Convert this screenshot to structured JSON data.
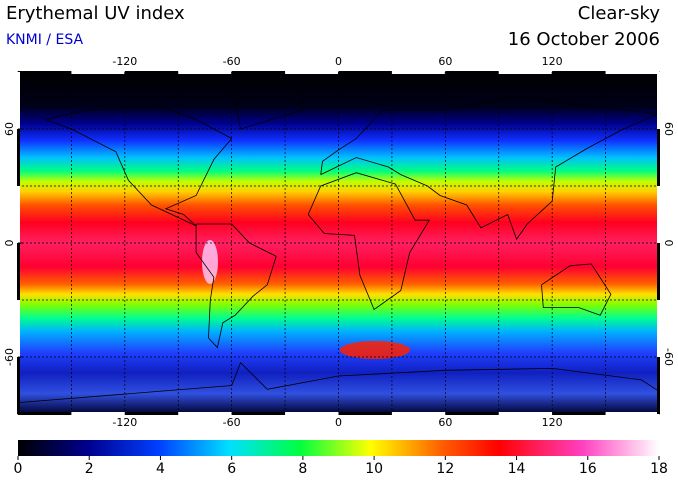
{
  "header": {
    "title": "Erythemal UV index",
    "source": "KNMI / ESA",
    "condition": "Clear-sky",
    "date": "16 October 2006"
  },
  "map": {
    "lon_ticks": [
      -120,
      -60,
      0,
      60,
      120
    ],
    "lat_ticks": [
      60,
      0,
      -60
    ]
  },
  "colorbar": {
    "ticks": [
      0,
      2,
      4,
      6,
      8,
      10,
      12,
      14,
      16,
      18
    ]
  }
}
